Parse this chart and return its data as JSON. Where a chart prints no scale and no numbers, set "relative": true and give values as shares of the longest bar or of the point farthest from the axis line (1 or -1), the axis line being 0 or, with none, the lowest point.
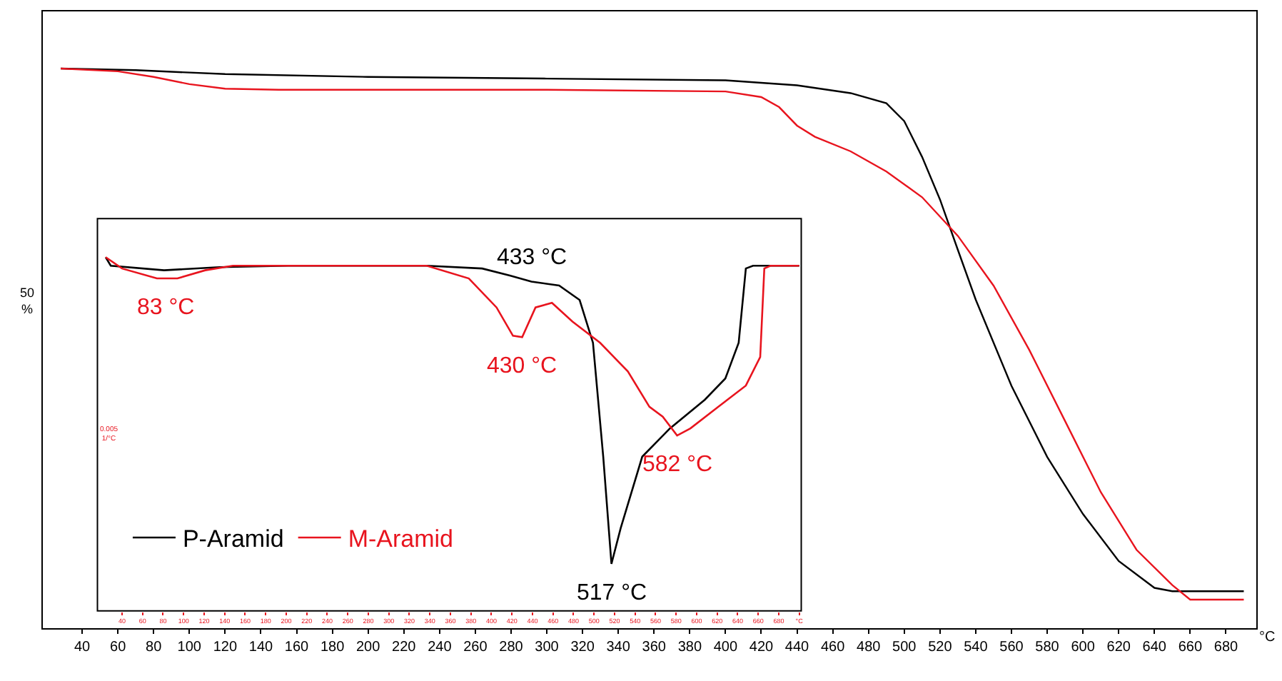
{
  "chart_data": [
    {
      "type": "line",
      "relative": true,
      "xlabel": "°C",
      "xlim": [
        18,
        697
      ],
      "xticks": [
        40,
        60,
        80,
        100,
        120,
        140,
        160,
        180,
        200,
        220,
        240,
        260,
        280,
        300,
        320,
        340,
        360,
        380,
        400,
        420,
        440,
        460,
        480,
        500,
        520,
        540,
        560,
        580,
        600,
        620,
        640,
        660,
        680
      ],
      "legend": false,
      "annotations": [
        "50 %"
      ],
      "series": [
        {
          "color": "#000000",
          "x": [
            28,
            70,
            120,
            200,
            300,
            400,
            440,
            470,
            490,
            500,
            510,
            520,
            530,
            540,
            560,
            580,
            600,
            620,
            640,
            650,
            690
          ],
          "values": [
            1.0,
            0.997,
            0.99,
            0.985,
            0.982,
            0.979,
            0.97,
            0.956,
            0.938,
            0.906,
            0.842,
            0.766,
            0.676,
            0.587,
            0.433,
            0.306,
            0.204,
            0.12,
            0.072,
            0.066,
            0.066
          ]
        },
        {
          "color": "#e8141e",
          "x": [
            28,
            60,
            80,
            100,
            120,
            150,
            300,
            400,
            420,
            430,
            440,
            450,
            470,
            490,
            510,
            530,
            550,
            570,
            590,
            610,
            630,
            650,
            660,
            690
          ],
          "values": [
            1.0,
            0.995,
            0.985,
            0.972,
            0.964,
            0.962,
            0.962,
            0.959,
            0.949,
            0.931,
            0.898,
            0.878,
            0.852,
            0.816,
            0.77,
            0.701,
            0.612,
            0.497,
            0.37,
            0.243,
            0.14,
            0.077,
            0.051,
            0.051
          ]
        }
      ]
    },
    {
      "type": "line",
      "relative": true,
      "xlim": [
        16,
        702
      ],
      "xticks": [
        40,
        60,
        80,
        100,
        120,
        140,
        160,
        180,
        200,
        220,
        240,
        260,
        280,
        300,
        320,
        340,
        360,
        380,
        400,
        420,
        440,
        460,
        480,
        500,
        520,
        540,
        560,
        580,
        600,
        620,
        640,
        660,
        680,
        {
          "value": 700,
          "label": "°C"
        }
      ],
      "legend": "bottom left",
      "annotations": [
        "0.005\n1/°C",
        {
          "text": "83 °C",
          "x": 83,
          "y": 0.94
        },
        {
          "text": "433 °C",
          "x": 439,
          "y": 0.931
        },
        {
          "text": "430 °C",
          "x": 430,
          "y": 0.774
        },
        {
          "text": "517 °C",
          "x": 517,
          "y": 0.133
        },
        {
          "text": "582 °C",
          "x": 581,
          "y": 0.496
        }
      ],
      "series": [
        {
          "name": "P-Aramid",
          "color": "#000000",
          "x": [
            24,
            29,
            81,
            135,
            202,
            337,
            391,
            418,
            439,
            466,
            486,
            499,
            509,
            517,
            526,
            547,
            574,
            608,
            628,
            641,
            648,
            655,
            700
          ],
          "values": [
            1.0,
            0.976,
            0.963,
            0.972,
            0.976,
            0.976,
            0.968,
            0.948,
            0.931,
            0.92,
            0.879,
            0.758,
            0.436,
            0.133,
            0.234,
            0.436,
            0.516,
            0.597,
            0.657,
            0.758,
            0.968,
            0.976,
            0.976
          ]
        },
        {
          "name": "M-Aramid",
          "color": "#e8141e",
          "x": [
            24,
            40,
            74,
            94,
            121,
            148,
            337,
            378,
            405,
            421,
            430,
            443,
            459,
            479,
            506,
            533,
            554,
            567,
            581,
            594,
            621,
            648,
            662,
            666,
            672,
            700
          ],
          "values": [
            1.0,
            0.968,
            0.94,
            0.94,
            0.963,
            0.976,
            0.976,
            0.94,
            0.858,
            0.778,
            0.774,
            0.858,
            0.871,
            0.818,
            0.758,
            0.677,
            0.577,
            0.549,
            0.496,
            0.516,
            0.577,
            0.637,
            0.718,
            0.968,
            0.976,
            0.976
          ]
        }
      ]
    }
  ]
}
